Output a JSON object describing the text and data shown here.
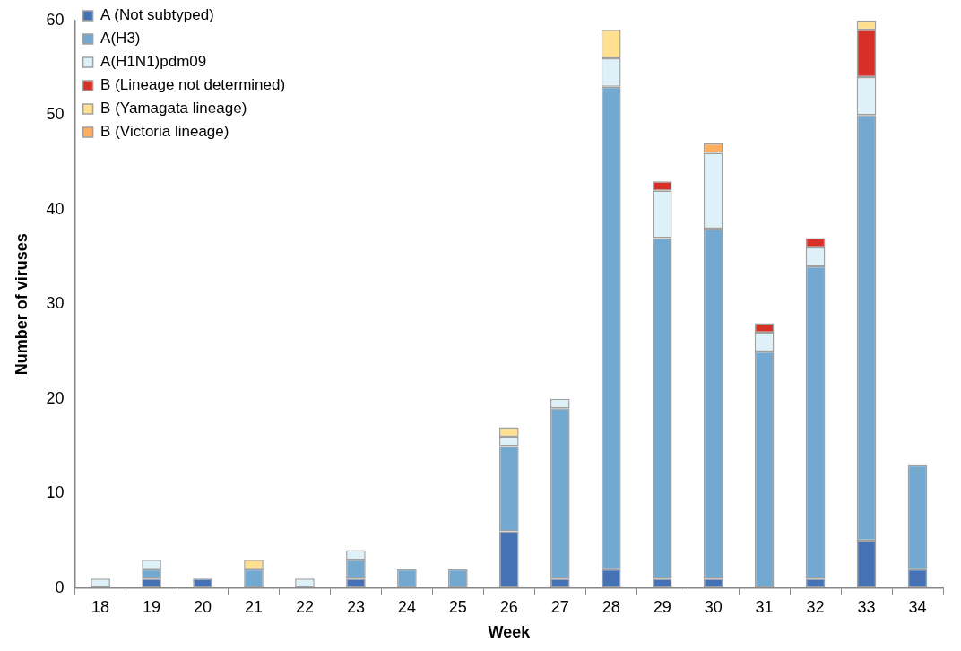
{
  "chart_data": {
    "type": "bar",
    "stacked": true,
    "xlabel": "Week",
    "ylabel": "Number of viruses",
    "categories": [
      "18",
      "19",
      "20",
      "21",
      "22",
      "23",
      "24",
      "25",
      "26",
      "27",
      "28",
      "29",
      "30",
      "31",
      "32",
      "33",
      "34"
    ],
    "series": [
      {
        "name": "A (Not subtyped)",
        "color": "#4472b4",
        "values": [
          0,
          1,
          1,
          0,
          0,
          1,
          0,
          0,
          6,
          1,
          2,
          1,
          1,
          0,
          1,
          5,
          2
        ]
      },
      {
        "name": "A(H3)",
        "color": "#73a9d0",
        "values": [
          0,
          1,
          0,
          2,
          0,
          2,
          2,
          2,
          9,
          18,
          51,
          36,
          37,
          25,
          33,
          45,
          11
        ]
      },
      {
        "name": "A(H1N1)pdm09",
        "color": "#dff1f8",
        "values": [
          1,
          1,
          0,
          0,
          1,
          1,
          0,
          0,
          1,
          1,
          3,
          5,
          8,
          2,
          2,
          4,
          0
        ]
      },
      {
        "name": "B (Lineage not determined)",
        "color": "#d73027",
        "values": [
          0,
          0,
          0,
          0,
          0,
          0,
          0,
          0,
          0,
          0,
          0,
          1,
          0,
          1,
          1,
          5,
          0
        ]
      },
      {
        "name": "B (Yamagata lineage)",
        "color": "#fee090",
        "values": [
          0,
          0,
          0,
          1,
          0,
          0,
          0,
          0,
          1,
          0,
          3,
          0,
          0,
          0,
          0,
          1,
          0
        ]
      },
      {
        "name": "B (Victoria lineage)",
        "color": "#fdae61",
        "values": [
          0,
          0,
          0,
          0,
          0,
          0,
          0,
          0,
          0,
          0,
          0,
          0,
          1,
          0,
          0,
          0,
          0
        ]
      }
    ],
    "ylim": [
      0,
      60
    ],
    "yticks": [
      0,
      10,
      20,
      30,
      40,
      50,
      60
    ],
    "grid": false,
    "legend": "top left"
  }
}
